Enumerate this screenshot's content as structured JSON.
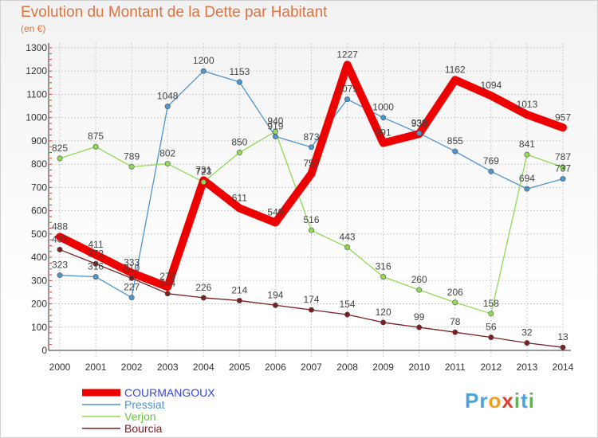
{
  "header": {
    "title": "Evolution du Montant de la Dette par Habitant",
    "subtitle": "(en €)"
  },
  "logo": {
    "text": "Proxiti",
    "letters": [
      {
        "ch": "P",
        "color": "#4aa3df"
      },
      {
        "ch": "r",
        "color": "#4aa3df"
      },
      {
        "ch": "o",
        "color": "#f0a020"
      },
      {
        "ch": "x",
        "color": "#e23a2e"
      },
      {
        "ch": "i",
        "color": "#58b848"
      },
      {
        "ch": "t",
        "color": "#4aa3df"
      },
      {
        "ch": "i",
        "color": "#58b848"
      }
    ]
  },
  "chart_data": {
    "type": "line",
    "x": [
      "2000",
      "2001",
      "2002",
      "2003",
      "2004",
      "2005",
      "2006",
      "2007",
      "2008",
      "2009",
      "2010",
      "2011",
      "2012",
      "2013",
      "2014"
    ],
    "ylim": [
      0,
      1300
    ],
    "yticks": [
      0,
      100,
      200,
      300,
      400,
      500,
      600,
      700,
      800,
      900,
      1000,
      1100,
      1200,
      1300
    ],
    "grid": true,
    "legend_position": "bottom-left",
    "series": [
      {
        "name": "COURMANGOUX",
        "color": "#ee0000",
        "legend_color": "#3344ee",
        "values": [
          488,
          411,
          333,
          273,
          731,
          611,
          549,
          759,
          1227,
          891,
          930,
          1162,
          1094,
          1013,
          957
        ]
      },
      {
        "name": "Pressiat",
        "color": "#4d95cf",
        "legend_color": "#4d95cf",
        "values": [
          323,
          316,
          227,
          1048,
          1200,
          1153,
          919,
          873,
          1079,
          1000,
          933,
          855,
          769,
          694,
          737
        ]
      },
      {
        "name": "Verjon",
        "color": "#8fdb55",
        "legend_color": "#6cc23a",
        "values": [
          825,
          875,
          789,
          802,
          723,
          850,
          940,
          516,
          443,
          316,
          260,
          206,
          158,
          841,
          787
        ]
      },
      {
        "name": "Bourcia",
        "color": "#7a2020",
        "legend_color": "#7a2020",
        "values": [
          433,
          372,
          310,
          244,
          226,
          214,
          194,
          174,
          154,
          120,
          99,
          78,
          56,
          32,
          13
        ]
      }
    ]
  }
}
